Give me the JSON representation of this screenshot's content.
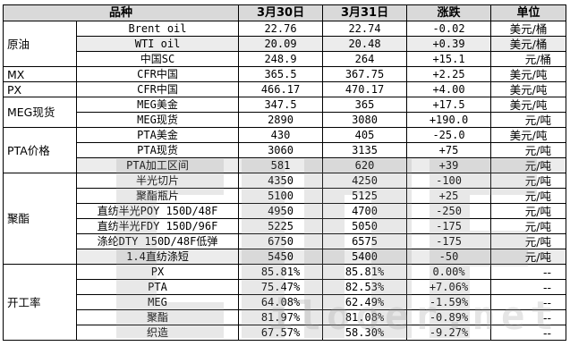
{
  "headers": [
    "品种",
    "3月30日",
    "3月31日",
    "涨跌",
    "单位"
  ],
  "groups": [
    {
      "name": "原油",
      "rows": [
        {
          "item": "Brent oil",
          "d1": "22.76",
          "d2": "22.74",
          "chg": "-0.02",
          "unit": "美元/桶"
        },
        {
          "item": "WTI oil",
          "d1": "20.09",
          "d2": "20.48",
          "chg": "+0.39",
          "unit": "美元/桶"
        },
        {
          "item": "中国SC",
          "d1": "248.9",
          "d2": "264",
          "chg": "+15.1",
          "unit": "元/桶"
        }
      ]
    },
    {
      "name": "MX",
      "rows": [
        {
          "item": "CFR中国",
          "d1": "365.5",
          "d2": "367.75",
          "chg": "+2.25",
          "unit": "美元/吨"
        }
      ]
    },
    {
      "name": "PX",
      "rows": [
        {
          "item": "CFR中国",
          "d1": "466.17",
          "d2": "470.17",
          "chg": "+4.00",
          "unit": "美元/吨"
        }
      ]
    },
    {
      "name": "MEG现货",
      "rows": [
        {
          "item": "MEG美金",
          "d1": "347.5",
          "d2": "365",
          "chg": "+17.5",
          "unit": "美元/吨"
        },
        {
          "item": "MEG现货",
          "d1": "2890",
          "d2": "3080",
          "chg": "+190.0",
          "unit": "元/吨"
        }
      ]
    },
    {
      "name": "PTA价格",
      "rows": [
        {
          "item": "PTA美金",
          "d1": "430",
          "d2": "405",
          "chg": "-25.0",
          "unit": "美元/吨"
        },
        {
          "item": "PTA现货",
          "d1": "3060",
          "d2": "3135",
          "chg": "+75",
          "unit": "元/吨"
        },
        {
          "item": "PTA加工区间",
          "d1": "581",
          "d2": "620",
          "chg": "+39",
          "unit": "元/吨"
        }
      ]
    },
    {
      "name": "聚酯",
      "rows": [
        {
          "item": "半光切片",
          "d1": "4350",
          "d2": "4250",
          "chg": "-100",
          "unit": "元/吨"
        },
        {
          "item": "聚酯瓶片",
          "d1": "5100",
          "d2": "5125",
          "chg": "+25",
          "unit": "元/吨"
        },
        {
          "item": "直纺半光POY 150D/48F",
          "d1": "4950",
          "d2": "4700",
          "chg": "-250",
          "unit": "元/吨"
        },
        {
          "item": "直纺半光FDY 150D/96F",
          "d1": "5225",
          "d2": "5050",
          "chg": "-175",
          "unit": "元/吨"
        },
        {
          "item": "涤纶DTY 150D/48F低弹",
          "d1": "6750",
          "d2": "6575",
          "chg": "-175",
          "unit": "元/吨"
        },
        {
          "item": "1.4直纺涤短",
          "d1": "5450",
          "d2": "5400",
          "chg": "-50",
          "unit": "元/吨"
        }
      ]
    },
    {
      "name": "开工率",
      "rows": [
        {
          "item": "PX",
          "d1": "85.81%",
          "d2": "85.81%",
          "chg": "0.00%",
          "unit": "--"
        },
        {
          "item": "PTA",
          "d1": "75.47%",
          "d2": "82.53%",
          "chg": "+7.06%",
          "unit": "--"
        },
        {
          "item": "MEG",
          "d1": "64.08%",
          "d2": "62.49%",
          "chg": "-1.59%",
          "unit": "--"
        },
        {
          "item": "聚酯",
          "d1": "81.97%",
          "d2": "81.08%",
          "chg": "-0.89%",
          "unit": "--"
        },
        {
          "item": "织造",
          "d1": "67.57%",
          "d2": "58.30%",
          "chg": "-9.27%",
          "unit": "--"
        }
      ]
    }
  ],
  "watermark": {
    "text": "ilooer.net",
    "color": "#a0a0a0"
  },
  "colors": {
    "header_bg": "#d9d9d9",
    "row_shade": "#ececec",
    "border": "#000000"
  }
}
